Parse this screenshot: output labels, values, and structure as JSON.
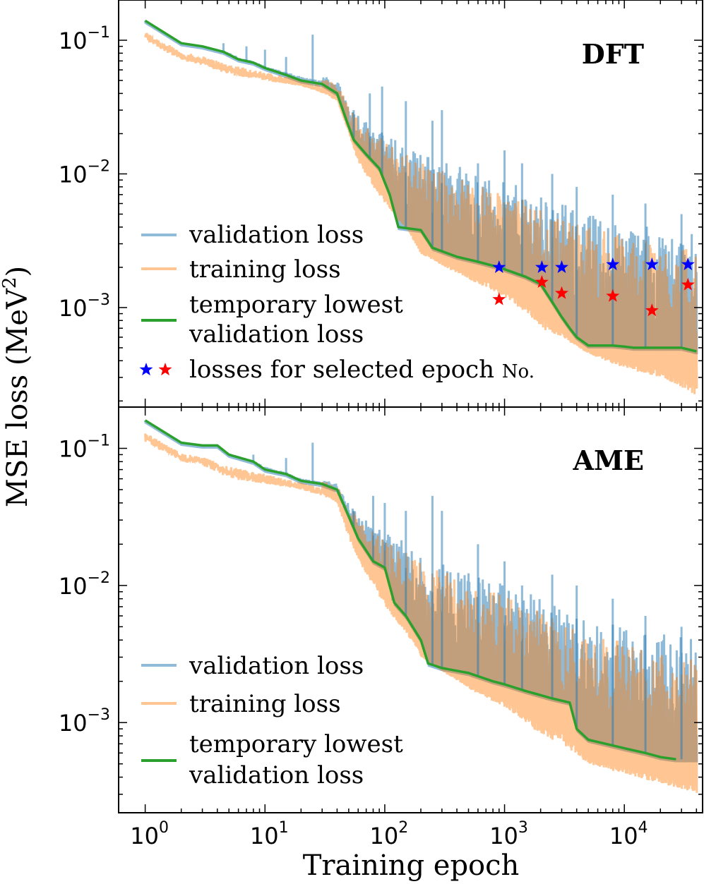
{
  "figure": {
    "ylabel_main": "MSE loss (MeV",
    "ylabel_sup": "2",
    "ylabel_close": ")",
    "xlabel": "Training epoch"
  },
  "colors": {
    "validation": "#1f77b4",
    "training": "#ff7f0e",
    "lowest": "#2ca02c",
    "star_val": "#0000ff",
    "star_train": "#ff0000"
  },
  "chart_data": [
    {
      "type": "line",
      "title": "DFT",
      "xscale": "log",
      "yscale": "log",
      "xlim": [
        0.6,
        45000
      ],
      "ylim": [
        0.00018,
        0.2
      ],
      "x_ticks": [
        {
          "base": "10",
          "exp": "0"
        },
        {
          "base": "10",
          "exp": "1"
        },
        {
          "base": "10",
          "exp": "2"
        },
        {
          "base": "10",
          "exp": "3"
        },
        {
          "base": "10",
          "exp": "4"
        }
      ],
      "y_ticks": [
        {
          "base": "10",
          "exp": "−1"
        },
        {
          "base": "10",
          "exp": "−2"
        },
        {
          "base": "10",
          "exp": "−3"
        }
      ],
      "legend": {
        "placement": "lower-left",
        "entries": [
          {
            "label": "validation loss",
            "line2": ""
          },
          {
            "label": "training loss",
            "line2": ""
          },
          {
            "label": "temporary lowest",
            "line2": "validation loss"
          },
          {
            "label": "losses for selected epoch ",
            "suffix": "No."
          }
        ]
      },
      "lowest_validation": [
        [
          1,
          0.14
        ],
        [
          2,
          0.095
        ],
        [
          3,
          0.09
        ],
        [
          4.5,
          0.082
        ],
        [
          6,
          0.072
        ],
        [
          8,
          0.068
        ],
        [
          10,
          0.062
        ],
        [
          15,
          0.055
        ],
        [
          20,
          0.05
        ],
        [
          30,
          0.047
        ],
        [
          40,
          0.04
        ],
        [
          48,
          0.025
        ],
        [
          55,
          0.018
        ],
        [
          70,
          0.014
        ],
        [
          90,
          0.011
        ],
        [
          110,
          0.007
        ],
        [
          130,
          0.004
        ],
        [
          200,
          0.0038
        ],
        [
          250,
          0.0028
        ],
        [
          400,
          0.0024
        ],
        [
          600,
          0.0022
        ],
        [
          900,
          0.002
        ],
        [
          1500,
          0.0017
        ],
        [
          2000,
          0.0015
        ],
        [
          2500,
          0.0011
        ],
        [
          3000,
          0.00085
        ],
        [
          3500,
          0.0007
        ],
        [
          4000,
          0.0006
        ],
        [
          5000,
          0.00052
        ],
        [
          8000,
          0.00052
        ],
        [
          10000,
          0.00051
        ],
        [
          12000,
          0.0005
        ],
        [
          20000,
          0.0005
        ],
        [
          30000,
          0.0005
        ],
        [
          40000,
          0.00047
        ]
      ],
      "validation_envelope": [
        [
          1,
          0.14
        ],
        [
          2,
          0.1
        ],
        [
          3,
          0.092
        ],
        [
          5,
          0.085
        ],
        [
          10,
          0.068
        ],
        [
          20,
          0.06
        ],
        [
          30,
          0.055
        ],
        [
          40,
          0.05
        ],
        [
          50,
          0.035
        ],
        [
          70,
          0.025
        ],
        [
          100,
          0.02
        ],
        [
          200,
          0.015
        ],
        [
          400,
          0.012
        ],
        [
          800,
          0.009
        ],
        [
          1500,
          0.008
        ],
        [
          3000,
          0.006
        ],
        [
          6000,
          0.005
        ],
        [
          10000,
          0.0045
        ],
        [
          20000,
          0.004
        ],
        [
          40000,
          0.0035
        ]
      ],
      "training_floor": [
        [
          1,
          0.1
        ],
        [
          2,
          0.07
        ],
        [
          3,
          0.065
        ],
        [
          5,
          0.055
        ],
        [
          10,
          0.05
        ],
        [
          20,
          0.045
        ],
        [
          30,
          0.04
        ],
        [
          40,
          0.035
        ],
        [
          50,
          0.02
        ],
        [
          60,
          0.012
        ],
        [
          80,
          0.008
        ],
        [
          100,
          0.006
        ],
        [
          150,
          0.004
        ],
        [
          200,
          0.0025
        ],
        [
          400,
          0.0018
        ],
        [
          600,
          0.0015
        ],
        [
          1000,
          0.0012
        ],
        [
          1500,
          0.0009
        ],
        [
          2000,
          0.0007
        ],
        [
          3000,
          0.0006
        ],
        [
          5000,
          0.00045
        ],
        [
          10000,
          0.00035
        ],
        [
          20000,
          0.0003
        ],
        [
          40000,
          0.00022
        ]
      ],
      "spikes": [
        [
          4.5,
          0.095
        ],
        [
          7,
          0.09
        ],
        [
          10,
          0.085
        ],
        [
          15,
          0.075
        ],
        [
          25,
          0.11
        ],
        [
          55,
          0.03
        ],
        [
          75,
          0.04
        ],
        [
          95,
          0.045
        ],
        [
          150,
          0.035
        ],
        [
          250,
          0.025
        ],
        [
          300,
          0.03
        ],
        [
          600,
          0.012
        ],
        [
          1000,
          0.015
        ],
        [
          1400,
          0.012
        ],
        [
          2500,
          0.01
        ],
        [
          4000,
          0.008
        ],
        [
          8000,
          0.007
        ],
        [
          15000,
          0.006
        ],
        [
          30000,
          0.005
        ]
      ],
      "selected_validation": [
        [
          900,
          0.002
        ],
        [
          2050,
          0.002
        ],
        [
          3000,
          0.002
        ],
        [
          8000,
          0.0021
        ],
        [
          17000,
          0.0021
        ],
        [
          34000,
          0.0021
        ]
      ],
      "selected_training": [
        [
          900,
          0.00115
        ],
        [
          2050,
          0.00155
        ],
        [
          3000,
          0.00128
        ],
        [
          8000,
          0.00122
        ],
        [
          17000,
          0.00095
        ],
        [
          34000,
          0.00148
        ]
      ]
    },
    {
      "type": "line",
      "title": "AME",
      "xscale": "log",
      "yscale": "log",
      "xlim": [
        0.6,
        45000
      ],
      "ylim": [
        0.00022,
        0.2
      ],
      "x_ticks": [
        {
          "base": "10",
          "exp": "0"
        },
        {
          "base": "10",
          "exp": "1"
        },
        {
          "base": "10",
          "exp": "2"
        },
        {
          "base": "10",
          "exp": "3"
        },
        {
          "base": "10",
          "exp": "4"
        }
      ],
      "y_ticks": [
        {
          "base": "10",
          "exp": "−1"
        },
        {
          "base": "10",
          "exp": "−2"
        },
        {
          "base": "10",
          "exp": "−3"
        }
      ],
      "legend": {
        "placement": "lower-left",
        "entries": [
          {
            "label": "validation loss",
            "line2": ""
          },
          {
            "label": "training loss",
            "line2": ""
          },
          {
            "label": "temporary lowest",
            "line2": "validation loss"
          }
        ]
      },
      "lowest_validation": [
        [
          1,
          0.16
        ],
        [
          2,
          0.11
        ],
        [
          3,
          0.105
        ],
        [
          4,
          0.105
        ],
        [
          5,
          0.09
        ],
        [
          8,
          0.08
        ],
        [
          10,
          0.07
        ],
        [
          15,
          0.065
        ],
        [
          20,
          0.058
        ],
        [
          30,
          0.055
        ],
        [
          40,
          0.05
        ],
        [
          50,
          0.032
        ],
        [
          60,
          0.022
        ],
        [
          80,
          0.015
        ],
        [
          100,
          0.0135
        ],
        [
          120,
          0.0075
        ],
        [
          150,
          0.006
        ],
        [
          200,
          0.004
        ],
        [
          230,
          0.0027
        ],
        [
          300,
          0.0025
        ],
        [
          500,
          0.0023
        ],
        [
          800,
          0.002
        ],
        [
          1000,
          0.0019
        ],
        [
          1500,
          0.0017
        ],
        [
          2500,
          0.0015
        ],
        [
          3500,
          0.0014
        ],
        [
          4000,
          0.0009
        ],
        [
          5000,
          0.00075
        ],
        [
          7000,
          0.0007
        ],
        [
          10000,
          0.00065
        ],
        [
          15000,
          0.0006
        ],
        [
          20000,
          0.00056
        ],
        [
          27000,
          0.00054
        ]
      ],
      "validation_envelope": [
        [
          1,
          0.16
        ],
        [
          2,
          0.11
        ],
        [
          5,
          0.095
        ],
        [
          10,
          0.08
        ],
        [
          20,
          0.065
        ],
        [
          30,
          0.06
        ],
        [
          40,
          0.055
        ],
        [
          50,
          0.04
        ],
        [
          70,
          0.03
        ],
        [
          100,
          0.025
        ],
        [
          200,
          0.018
        ],
        [
          400,
          0.014
        ],
        [
          800,
          0.011
        ],
        [
          1500,
          0.009
        ],
        [
          3000,
          0.007
        ],
        [
          6000,
          0.0055
        ],
        [
          10000,
          0.005
        ],
        [
          20000,
          0.0045
        ],
        [
          40000,
          0.004
        ]
      ],
      "training_floor": [
        [
          1,
          0.11
        ],
        [
          2,
          0.08
        ],
        [
          3,
          0.075
        ],
        [
          5,
          0.06
        ],
        [
          10,
          0.055
        ],
        [
          20,
          0.05
        ],
        [
          30,
          0.045
        ],
        [
          40,
          0.04
        ],
        [
          50,
          0.022
        ],
        [
          60,
          0.015
        ],
        [
          80,
          0.01
        ],
        [
          100,
          0.007
        ],
        [
          150,
          0.0045
        ],
        [
          200,
          0.003
        ],
        [
          400,
          0.002
        ],
        [
          600,
          0.0016
        ],
        [
          1000,
          0.0013
        ],
        [
          1500,
          0.001
        ],
        [
          2000,
          0.0008
        ],
        [
          3000,
          0.0007
        ],
        [
          5000,
          0.0005
        ],
        [
          10000,
          0.00042
        ],
        [
          20000,
          0.00036
        ],
        [
          40000,
          0.0003
        ]
      ],
      "spikes": [
        [
          8,
          0.09
        ],
        [
          15,
          0.085
        ],
        [
          25,
          0.11
        ],
        [
          55,
          0.035
        ],
        [
          80,
          0.045
        ],
        [
          100,
          0.04
        ],
        [
          150,
          0.035
        ],
        [
          250,
          0.045
        ],
        [
          300,
          0.035
        ],
        [
          600,
          0.02
        ],
        [
          1000,
          0.015
        ],
        [
          1400,
          0.01
        ],
        [
          2500,
          0.012
        ],
        [
          4000,
          0.01
        ],
        [
          8000,
          0.008
        ],
        [
          15000,
          0.006
        ],
        [
          30000,
          0.005
        ]
      ],
      "selected_validation": [],
      "selected_training": []
    }
  ]
}
